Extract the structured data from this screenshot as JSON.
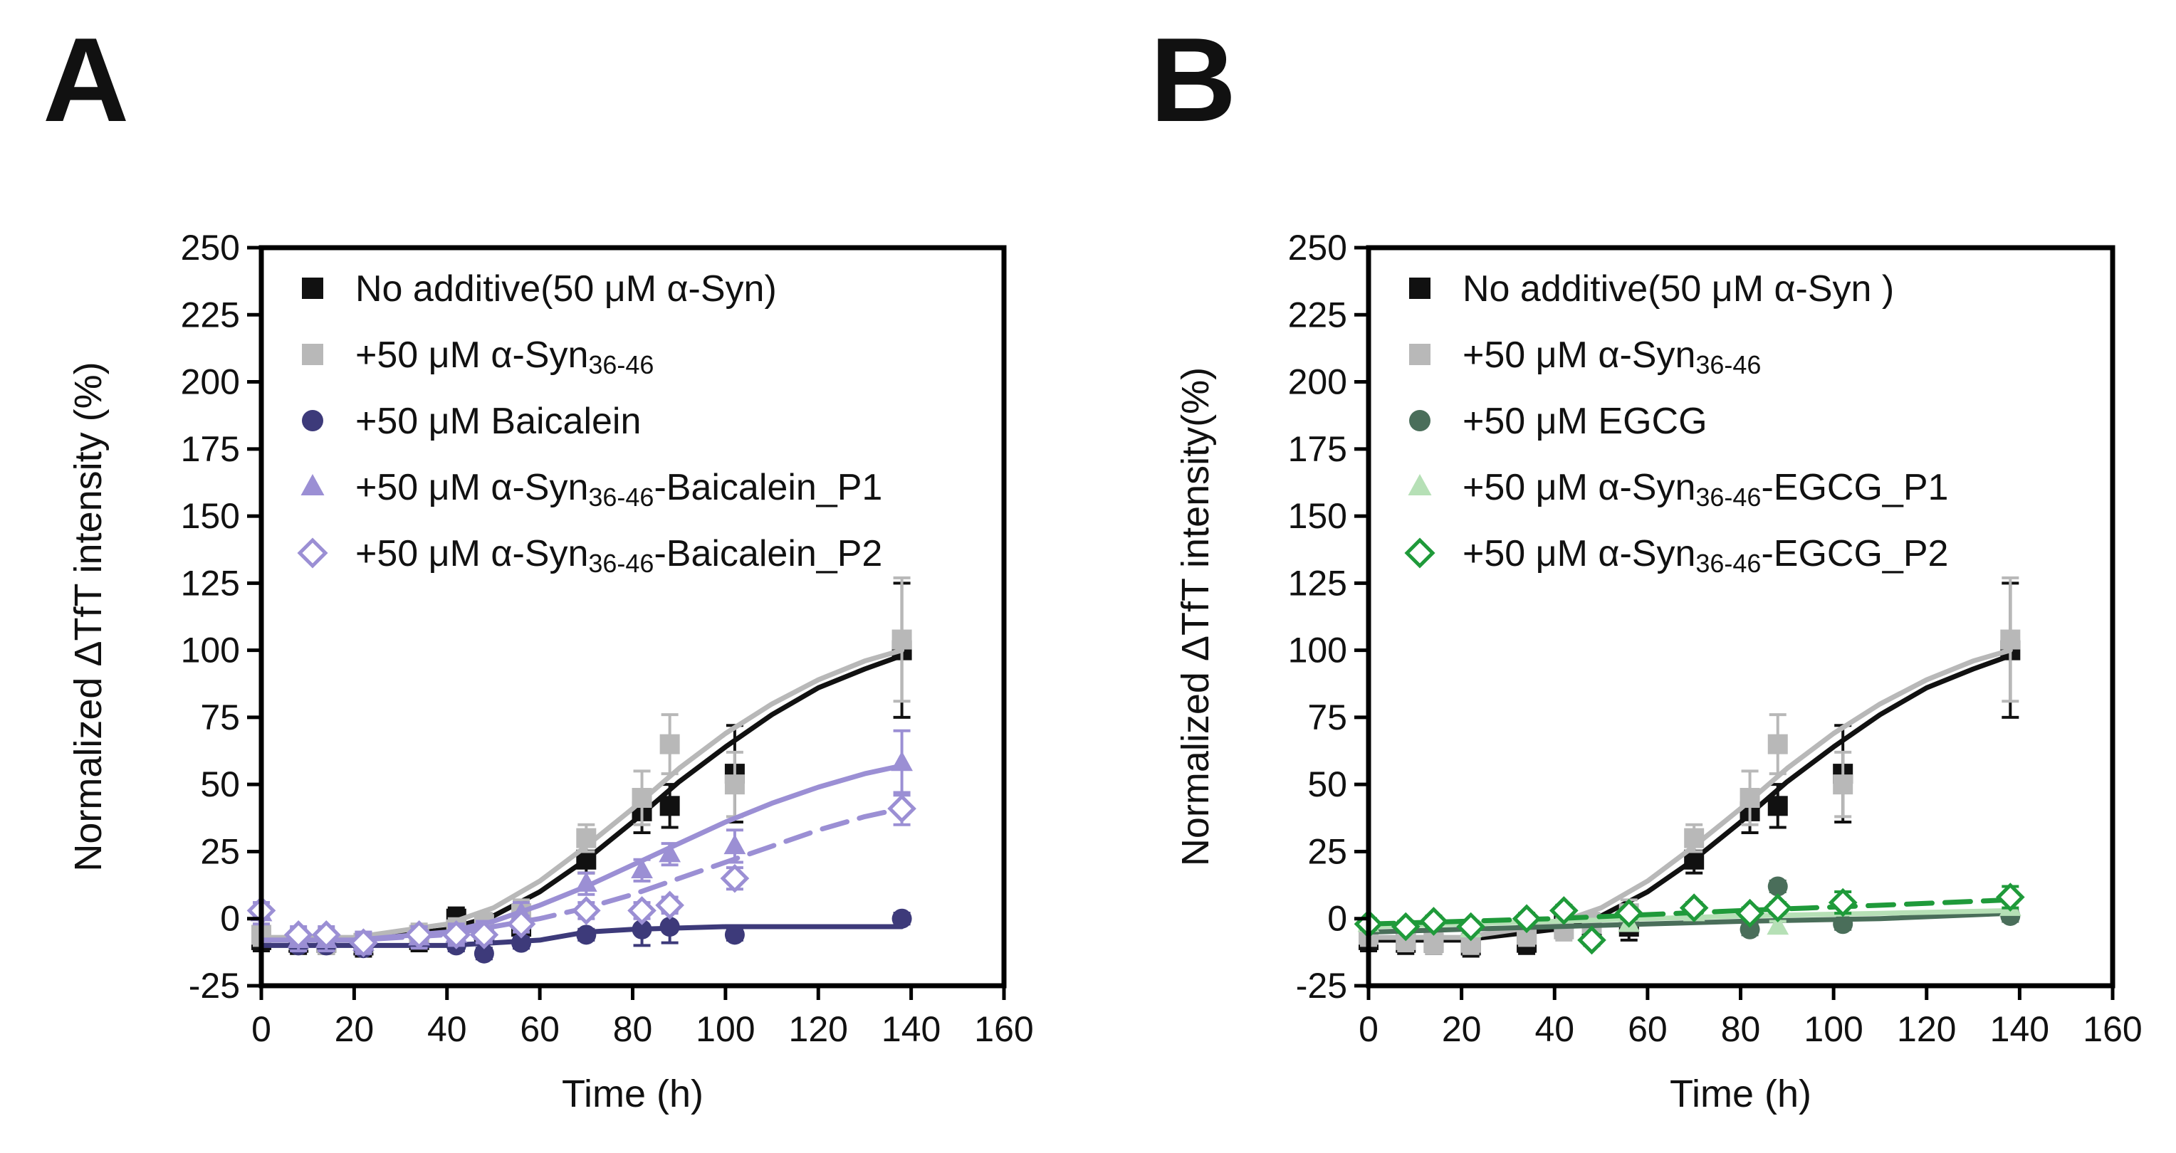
{
  "chart_data": [
    {
      "type": "scatter",
      "panel_label": "A",
      "xlabel": "Time (h)",
      "ylabel": "Normalized ΔTfT intensity (%)",
      "xlim": [
        0,
        160
      ],
      "ylim": [
        -25,
        250
      ],
      "xticks": [
        0,
        20,
        40,
        60,
        80,
        100,
        120,
        140,
        160
      ],
      "yticks": [
        -25,
        0,
        25,
        50,
        75,
        100,
        125,
        150,
        175,
        200,
        225,
        250
      ],
      "grid": false,
      "legend_position": "top-left",
      "series": [
        {
          "name": "No additive(50 μM α-Syn)",
          "legend_parts": [
            {
              "t": "No additive(50 μM α-Syn)",
              "sub": false
            }
          ],
          "color": "#111111",
          "marker": "square",
          "filled": true,
          "line": "solid",
          "x": [
            0,
            8,
            14,
            22,
            34,
            42,
            48,
            56,
            70,
            82,
            88,
            102,
            138
          ],
          "y": [
            -8,
            -9,
            -9,
            -10,
            -8,
            0,
            -5,
            -3,
            22,
            40,
            42,
            54,
            100
          ],
          "err": [
            4,
            4,
            4,
            4,
            4,
            4,
            4,
            5,
            5,
            8,
            8,
            18,
            25
          ],
          "fit": [
            [
              0,
              -8
            ],
            [
              20,
              -8
            ],
            [
              40,
              -4
            ],
            [
              50,
              1
            ],
            [
              60,
              10
            ],
            [
              70,
              22
            ],
            [
              80,
              36
            ],
            [
              90,
              51
            ],
            [
              100,
              64
            ],
            [
              110,
              76
            ],
            [
              120,
              86
            ],
            [
              130,
              93
            ],
            [
              138,
              98
            ]
          ]
        },
        {
          "name": "+50 μM α-Syn36-46",
          "legend_parts": [
            {
              "t": "+50 μM α-Syn",
              "sub": false
            },
            {
              "t": "36-46",
              "sub": true
            }
          ],
          "color": "#b8b8b8",
          "marker": "square",
          "filled": true,
          "line": "solid",
          "x": [
            0,
            8,
            14,
            22,
            34,
            42,
            48,
            56,
            70,
            82,
            88,
            102,
            138
          ],
          "y": [
            -6,
            -8,
            -9,
            -9,
            -6,
            -4,
            -2,
            2,
            30,
            45,
            65,
            50,
            104
          ],
          "err": [
            4,
            4,
            4,
            4,
            4,
            4,
            4,
            5,
            5,
            10,
            11,
            12,
            23
          ],
          "fit": [
            [
              0,
              -7
            ],
            [
              20,
              -7
            ],
            [
              40,
              -2
            ],
            [
              50,
              4
            ],
            [
              60,
              14
            ],
            [
              70,
              27
            ],
            [
              80,
              41
            ],
            [
              90,
              56
            ],
            [
              100,
              69
            ],
            [
              110,
              80
            ],
            [
              120,
              89
            ],
            [
              130,
              96
            ],
            [
              138,
              100
            ]
          ]
        },
        {
          "name": "+50 μM Baicalein",
          "legend_parts": [
            {
              "t": "+50 μM Baicalein",
              "sub": false
            }
          ],
          "color": "#3d3a7a",
          "marker": "circle",
          "filled": true,
          "line": "solid",
          "x": [
            8,
            14,
            22,
            42,
            48,
            56,
            70,
            82,
            88,
            102,
            138
          ],
          "y": [
            -10,
            -10,
            -11,
            -10,
            -13,
            -9,
            -6,
            -4,
            -3,
            -6,
            0
          ],
          "err": [
            2,
            2,
            2,
            2,
            2,
            2,
            2,
            6,
            6,
            2,
            2
          ],
          "fit": [
            [
              0,
              -10
            ],
            [
              40,
              -10
            ],
            [
              50,
              -9
            ],
            [
              60,
              -8
            ],
            [
              70,
              -5
            ],
            [
              80,
              -4
            ],
            [
              100,
              -3
            ],
            [
              138,
              -3
            ]
          ]
        },
        {
          "name": "+50 μM α-Syn36-46-Baicalein_P1",
          "legend_parts": [
            {
              "t": "+50 μM α-Syn",
              "sub": false
            },
            {
              "t": "36-46",
              "sub": true
            },
            {
              "t": "-Baicalein_P1",
              "sub": false
            }
          ],
          "color": "#9b8fd4",
          "marker": "triangle",
          "filled": true,
          "line": "solid",
          "x": [
            0,
            8,
            14,
            22,
            34,
            42,
            48,
            56,
            70,
            82,
            88,
            102,
            138
          ],
          "y": [
            2,
            -8,
            -8,
            -9,
            -7,
            -6,
            -5,
            2,
            13,
            18,
            24,
            27,
            58
          ],
          "err": [
            4,
            4,
            4,
            4,
            4,
            4,
            4,
            4,
            4,
            4,
            4,
            6,
            12
          ],
          "fit": [
            [
              0,
              -8
            ],
            [
              20,
              -8
            ],
            [
              40,
              -5
            ],
            [
              50,
              -1
            ],
            [
              60,
              5
            ],
            [
              70,
              12
            ],
            [
              80,
              20
            ],
            [
              90,
              28
            ],
            [
              100,
              36
            ],
            [
              110,
              43
            ],
            [
              120,
              49
            ],
            [
              130,
              54
            ],
            [
              138,
              57
            ]
          ]
        },
        {
          "name": "+50 μM α-Syn36-46-Baicalein_P2",
          "legend_parts": [
            {
              "t": "+50 μM α-Syn",
              "sub": false
            },
            {
              "t": "36-46",
              "sub": true
            },
            {
              "t": "-Baicalein_P2",
              "sub": false
            }
          ],
          "color": "#9b8fd4",
          "marker": "diamond",
          "filled": false,
          "line": "dashed",
          "x": [
            0,
            8,
            14,
            22,
            34,
            42,
            48,
            56,
            70,
            82,
            88,
            102,
            138
          ],
          "y": [
            3,
            -6,
            -6,
            -9,
            -6,
            -6,
            -6,
            -2,
            3,
            3,
            5,
            15,
            41
          ],
          "err": [
            3,
            3,
            3,
            3,
            3,
            3,
            3,
            3,
            3,
            3,
            3,
            4,
            6
          ],
          "fit": [
            [
              0,
              -8
            ],
            [
              20,
              -8
            ],
            [
              40,
              -6
            ],
            [
              50,
              -3
            ],
            [
              60,
              0
            ],
            [
              70,
              4
            ],
            [
              80,
              9
            ],
            [
              90,
              15
            ],
            [
              100,
              21
            ],
            [
              110,
              27
            ],
            [
              120,
              33
            ],
            [
              130,
              38
            ],
            [
              138,
              41
            ]
          ]
        }
      ]
    },
    {
      "type": "scatter",
      "panel_label": "B",
      "xlabel": "Time (h)",
      "ylabel": "Normalized ΔTfT intensity(%)",
      "xlim": [
        0,
        160
      ],
      "ylim": [
        -25,
        250
      ],
      "xticks": [
        0,
        20,
        40,
        60,
        80,
        100,
        120,
        140,
        160
      ],
      "yticks": [
        -25,
        0,
        25,
        50,
        75,
        100,
        125,
        150,
        175,
        200,
        225,
        250
      ],
      "grid": false,
      "legend_position": "top-left",
      "series": [
        {
          "name": "No additive(50 μM α-Syn )",
          "legend_parts": [
            {
              "t": "No additive(50 μM α-Syn )",
              "sub": false
            }
          ],
          "color": "#111111",
          "marker": "square",
          "filled": true,
          "line": "solid",
          "x": [
            0,
            8,
            14,
            22,
            34,
            42,
            48,
            56,
            70,
            82,
            88,
            102,
            138
          ],
          "y": [
            -8,
            -9,
            -9,
            -10,
            -9,
            0,
            -5,
            -3,
            22,
            40,
            42,
            54,
            100
          ],
          "err": [
            4,
            4,
            4,
            4,
            4,
            4,
            4,
            5,
            5,
            8,
            8,
            18,
            25
          ],
          "fit": [
            [
              0,
              -8
            ],
            [
              20,
              -8
            ],
            [
              40,
              -4
            ],
            [
              50,
              1
            ],
            [
              60,
              10
            ],
            [
              70,
              22
            ],
            [
              80,
              36
            ],
            [
              90,
              51
            ],
            [
              100,
              64
            ],
            [
              110,
              76
            ],
            [
              120,
              86
            ],
            [
              130,
              93
            ],
            [
              138,
              98
            ]
          ]
        },
        {
          "name": "+50 μM α-Syn36-46",
          "legend_parts": [
            {
              "t": "+50 μM α-Syn",
              "sub": false
            },
            {
              "t": "36-46",
              "sub": true
            }
          ],
          "color": "#b8b8b8",
          "marker": "square",
          "filled": true,
          "line": "solid",
          "x": [
            0,
            8,
            14,
            22,
            34,
            42,
            48,
            56,
            70,
            82,
            88,
            102,
            138
          ],
          "y": [
            -6,
            -8,
            -9,
            -9,
            -6,
            -4,
            -2,
            2,
            30,
            45,
            65,
            50,
            104
          ],
          "err": [
            4,
            4,
            4,
            4,
            4,
            4,
            4,
            5,
            5,
            10,
            11,
            12,
            23
          ],
          "fit": [
            [
              0,
              -7
            ],
            [
              20,
              -7
            ],
            [
              40,
              -2
            ],
            [
              50,
              4
            ],
            [
              60,
              14
            ],
            [
              70,
              27
            ],
            [
              80,
              41
            ],
            [
              90,
              56
            ],
            [
              100,
              69
            ],
            [
              110,
              80
            ],
            [
              120,
              89
            ],
            [
              130,
              96
            ],
            [
              138,
              100
            ]
          ]
        },
        {
          "name": "+50 μM EGCG",
          "legend_parts": [
            {
              "t": "+50 μM EGCG",
              "sub": false
            }
          ],
          "color": "#4a6e5a",
          "marker": "circle",
          "filled": true,
          "line": "solid",
          "x": [
            82,
            88,
            102,
            138
          ],
          "y": [
            -4,
            12,
            -2,
            1
          ],
          "err": [
            2,
            2,
            2,
            2
          ],
          "fit": [
            [
              0,
              -5
            ],
            [
              40,
              -3
            ],
            [
              80,
              -1
            ],
            [
              110,
              0
            ],
            [
              138,
              2
            ]
          ]
        },
        {
          "name": "+50 μM α-Syn36-46-EGCG_P1",
          "legend_parts": [
            {
              "t": "+50 μM α-Syn",
              "sub": false
            },
            {
              "t": "36-46",
              "sub": true
            },
            {
              "t": "-EGCG_P1",
              "sub": false
            }
          ],
          "color": "#b6e0b6",
          "marker": "triangle",
          "filled": true,
          "line": "solid",
          "x": [
            0,
            22,
            56,
            70,
            88,
            138
          ],
          "y": [
            -2,
            -4,
            -2,
            2,
            -3,
            4
          ],
          "err": [
            2,
            2,
            2,
            2,
            2,
            2
          ],
          "fit": [
            [
              0,
              -3
            ],
            [
              40,
              -1
            ],
            [
              80,
              1
            ],
            [
              110,
              2
            ],
            [
              138,
              3
            ]
          ]
        },
        {
          "name": "+50 μM α-Syn36-46-EGCG_P2",
          "legend_parts": [
            {
              "t": "+50 μM α-Syn",
              "sub": false
            },
            {
              "t": "36-46",
              "sub": true
            },
            {
              "t": "-EGCG_P2",
              "sub": false
            }
          ],
          "color": "#1f9a3a",
          "marker": "diamond",
          "filled": false,
          "line": "dashed",
          "x": [
            0,
            8,
            14,
            22,
            34,
            42,
            48,
            56,
            70,
            82,
            88,
            102,
            138
          ],
          "y": [
            -2,
            -3,
            -1,
            -3,
            0,
            3,
            -8,
            2,
            4,
            2,
            4,
            6,
            8
          ],
          "err": [
            2,
            2,
            2,
            2,
            2,
            2,
            2,
            2,
            2,
            2,
            2,
            4,
            4
          ],
          "fit": [
            [
              0,
              -2
            ],
            [
              40,
              0
            ],
            [
              80,
              3
            ],
            [
              110,
              5
            ],
            [
              138,
              7
            ]
          ]
        }
      ]
    }
  ]
}
